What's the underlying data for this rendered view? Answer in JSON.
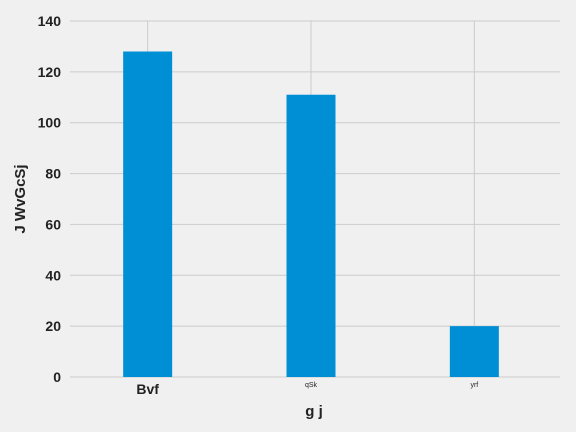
{
  "chart_data": {
    "type": "bar",
    "categories": [
      "Bvf",
      "qSk",
      "yrf"
    ],
    "values": [
      128,
      111,
      20
    ],
    "title": "",
    "xlabel": "g j",
    "ylabel": "J WvGcSj",
    "ylim": [
      0,
      140
    ],
    "yticks": [
      0,
      20,
      40,
      60,
      80,
      100,
      120,
      140
    ],
    "grid": true,
    "bar_color": "#008fd5",
    "tick_label_sizes": [
      "large",
      "tiny",
      "tiny"
    ]
  }
}
